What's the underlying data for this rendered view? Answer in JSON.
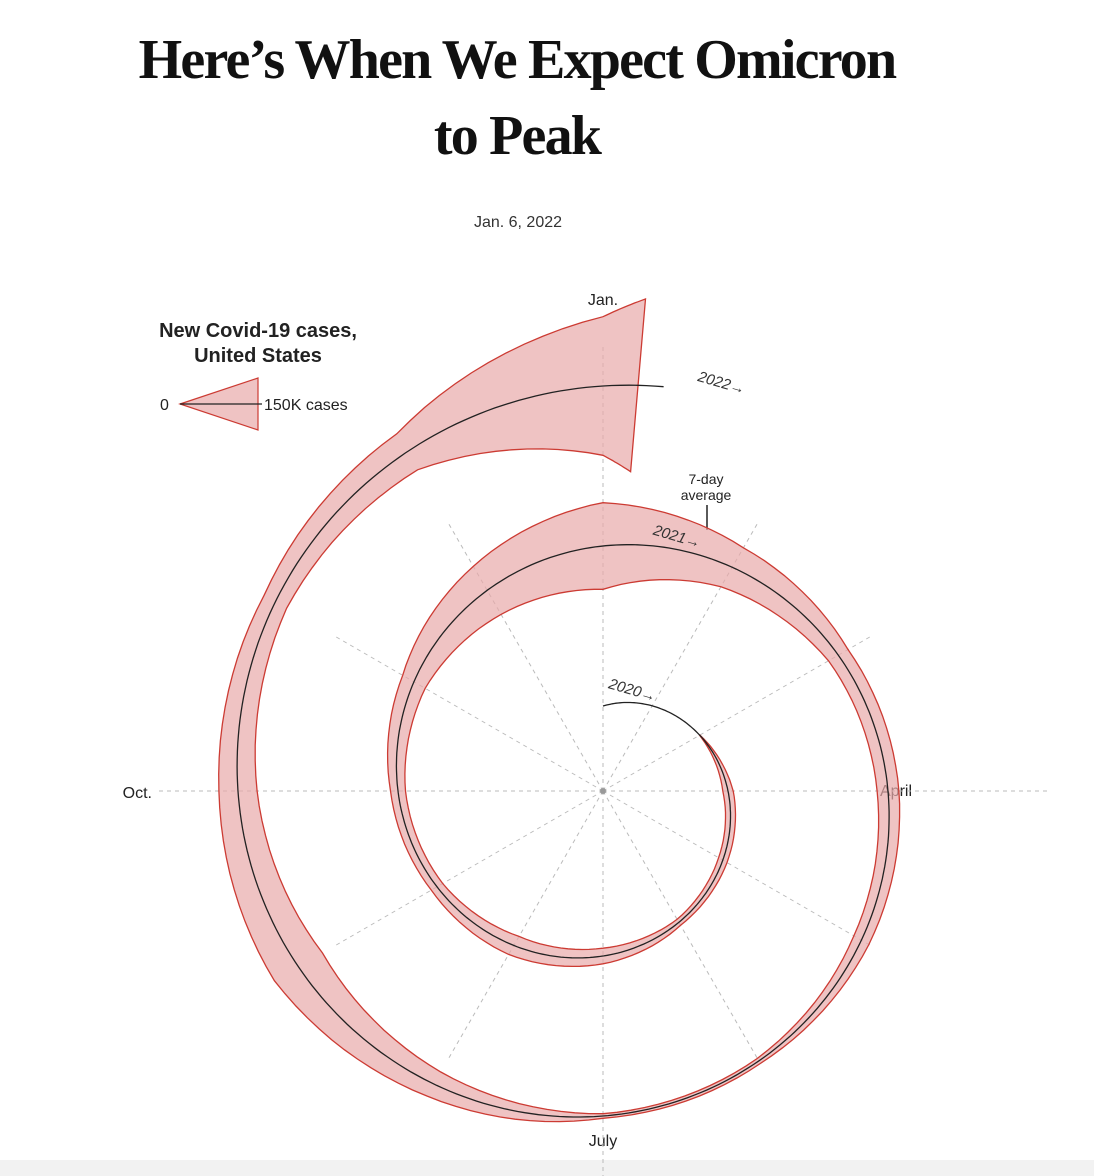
{
  "header": {
    "title": "Here’s When We Expect Omicron to Peak",
    "date": "Jan. 6, 2022"
  },
  "chart_data": {
    "type": "spiral",
    "legend": {
      "title": [
        "New Covid-19 cases,",
        "United States"
      ],
      "min": 0,
      "max": {
        "value": 150000,
        "label": "150K cases"
      }
    },
    "months": [
      "Jan.",
      "April",
      "July",
      "Oct."
    ],
    "year_labels": [
      "2020→",
      "2021→",
      "2022→"
    ],
    "annotation": [
      "7-day",
      "average"
    ],
    "color": "#e8a9a9",
    "stroke": "#cc3b33",
    "series": [
      {
        "name": "New Covid-19 cases",
        "x": [
          "2020-03",
          "2020-04",
          "2020-05",
          "2020-06",
          "2020-07",
          "2020-08",
          "2020-09",
          "2020-10",
          "2020-11",
          "2020-12",
          "2021-01",
          "2021-02",
          "2021-03",
          "2021-04",
          "2021-05",
          "2021-06",
          "2021-07",
          "2021-08",
          "2021-09",
          "2021-10",
          "2021-11",
          "2021-12",
          "2022-01-01",
          "2022-01-06"
        ],
        "values": [
          1000,
          30000,
          28000,
          20000,
          45000,
          60000,
          38000,
          43000,
          75000,
          160000,
          250000,
          130000,
          65000,
          63000,
          50000,
          17000,
          13000,
          80000,
          160000,
          110000,
          75000,
          120000,
          400000,
          500000
        ]
      }
    ]
  }
}
